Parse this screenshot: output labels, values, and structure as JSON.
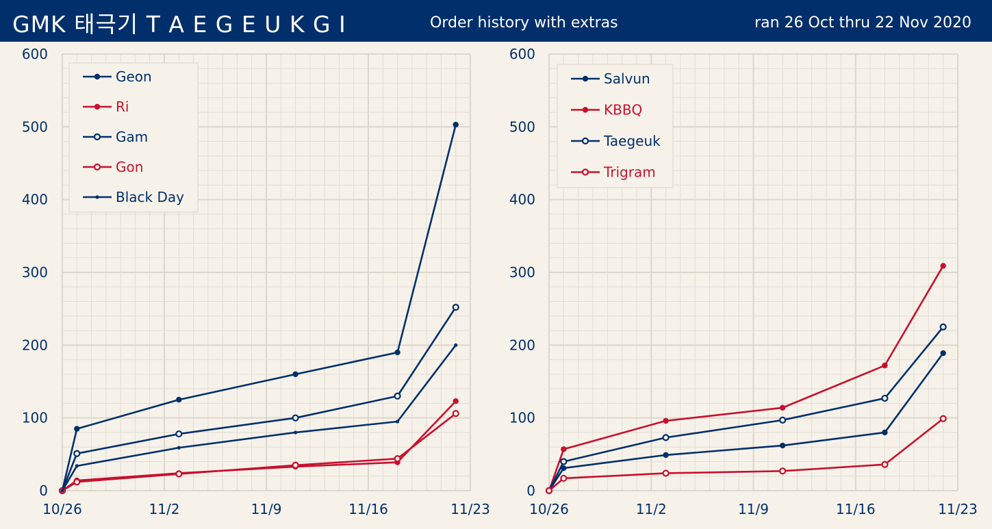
{
  "header": {
    "title": "GMK 태극기 T A E G E U K G I",
    "subtitle": "Order history with extras",
    "date_range": "ran 26 Oct thru 22 Nov 2020"
  },
  "colors": {
    "navy": "#012f6b",
    "red": "#c8102e",
    "background": "#f6f2ea",
    "grid": "#e2dcd2"
  },
  "chart_data": [
    {
      "type": "line",
      "x_tick_labels": [
        "10/26",
        "11/2",
        "11/9",
        "11/16",
        "11/23"
      ],
      "x_day_range": [
        26,
        54
      ],
      "x_dates": [
        "10/26",
        "10/27",
        "11/3",
        "11/11",
        "11/18",
        "11/22"
      ],
      "y_ticks": [
        "0",
        "100",
        "200",
        "300",
        "400",
        "500",
        "600"
      ],
      "ylim": [
        0,
        600
      ],
      "grid": true,
      "legend_position": "top-left",
      "series": [
        {
          "name": "Geon",
          "color": "#012f6b",
          "marker": "filled",
          "values": [
            0,
            85,
            125,
            160,
            190,
            503
          ]
        },
        {
          "name": "Ri",
          "color": "#c8102e",
          "marker": "filled",
          "values": [
            0,
            14,
            24,
            33,
            39,
            123
          ]
        },
        {
          "name": "Gam",
          "color": "#012f6b",
          "marker": "open",
          "values": [
            0,
            51,
            78,
            100,
            130,
            252
          ]
        },
        {
          "name": "Gon",
          "color": "#c8102e",
          "marker": "open",
          "values": [
            0,
            12,
            23,
            35,
            44,
            106
          ]
        },
        {
          "name": "Black Day",
          "color": "#012f6b",
          "marker": "dot",
          "values": [
            0,
            34,
            59,
            80,
            95,
            200
          ]
        }
      ]
    },
    {
      "type": "line",
      "x_tick_labels": [
        "10/26",
        "11/2",
        "11/9",
        "11/16",
        "11/23"
      ],
      "x_day_range": [
        26,
        54
      ],
      "x_dates": [
        "10/26",
        "10/27",
        "11/3",
        "11/11",
        "11/18",
        "11/22"
      ],
      "y_ticks": [
        "0",
        "100",
        "200",
        "300",
        "400",
        "500",
        "600"
      ],
      "ylim": [
        0,
        600
      ],
      "grid": true,
      "legend_position": "top-left",
      "series": [
        {
          "name": "Salvun",
          "color": "#012f6b",
          "marker": "filled",
          "values": [
            0,
            31,
            49,
            62,
            80,
            189
          ]
        },
        {
          "name": "KBBQ",
          "color": "#c8102e",
          "marker": "filled",
          "values": [
            0,
            57,
            96,
            114,
            172,
            309
          ]
        },
        {
          "name": "Taegeuk",
          "color": "#012f6b",
          "marker": "open",
          "values": [
            0,
            40,
            73,
            97,
            127,
            225
          ]
        },
        {
          "name": "Trigram",
          "color": "#c8102e",
          "marker": "open",
          "values": [
            0,
            17,
            24,
            27,
            36,
            99
          ]
        }
      ]
    }
  ]
}
